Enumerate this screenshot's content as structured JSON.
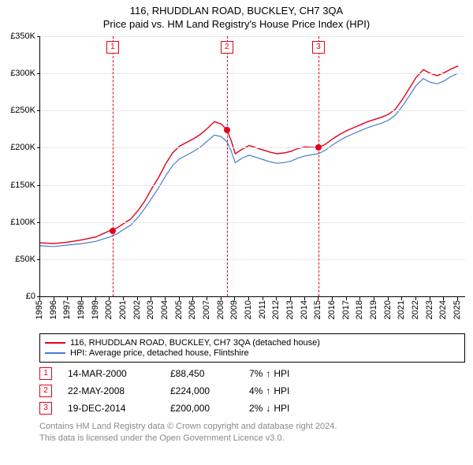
{
  "title": "116, RHUDDLAN ROAD, BUCKLEY, CH7 3QA",
  "subtitle": "Price paid vs. HM Land Registry's House Price Index (HPI)",
  "chart": {
    "type": "line",
    "background_color": "#ffffff",
    "grid_color": "#e8e8e8",
    "axis_color": "#000000",
    "x": {
      "min": 1995,
      "max": 2025.5,
      "ticks": [
        1995,
        1996,
        1997,
        1998,
        1999,
        2000,
        2001,
        2002,
        2003,
        2004,
        2005,
        2006,
        2007,
        2008,
        2009,
        2010,
        2011,
        2012,
        2013,
        2014,
        2015,
        2016,
        2017,
        2018,
        2019,
        2020,
        2021,
        2022,
        2023,
        2024,
        2025
      ]
    },
    "y": {
      "min": 0,
      "max": 350000,
      "ticks": [
        0,
        50000,
        100000,
        150000,
        200000,
        250000,
        300000,
        350000
      ],
      "tick_labels": [
        "£0",
        "£50K",
        "£100K",
        "£150K",
        "£200K",
        "£250K",
        "£300K",
        "£350K"
      ]
    },
    "series": [
      {
        "name": "116, RHUDDLAN ROAD, BUCKLEY, CH7 3QA (detached house)",
        "color": "#e2001a",
        "width": 1.4,
        "data": [
          [
            1995,
            72000
          ],
          [
            1996,
            71000
          ],
          [
            1997,
            73000
          ],
          [
            1998,
            76000
          ],
          [
            1999,
            80000
          ],
          [
            2000,
            88450
          ],
          [
            2000.5,
            92000
          ],
          [
            2001,
            98000
          ],
          [
            2001.5,
            104000
          ],
          [
            2002,
            115000
          ],
          [
            2002.5,
            128000
          ],
          [
            2003,
            145000
          ],
          [
            2003.5,
            160000
          ],
          [
            2004,
            178000
          ],
          [
            2004.5,
            193000
          ],
          [
            2005,
            202000
          ],
          [
            2005.5,
            207000
          ],
          [
            2006,
            212000
          ],
          [
            2006.5,
            218000
          ],
          [
            2007,
            226000
          ],
          [
            2007.5,
            235000
          ],
          [
            2008,
            232000
          ],
          [
            2008.4,
            224000
          ],
          [
            2008.7,
            210000
          ],
          [
            2009,
            192000
          ],
          [
            2009.5,
            198000
          ],
          [
            2010,
            203000
          ],
          [
            2010.5,
            200000
          ],
          [
            2011,
            197000
          ],
          [
            2011.5,
            194000
          ],
          [
            2012,
            192000
          ],
          [
            2012.5,
            193000
          ],
          [
            2013,
            195000
          ],
          [
            2013.5,
            199000
          ],
          [
            2014,
            201000
          ],
          [
            2014.97,
            200000
          ],
          [
            2015.5,
            205000
          ],
          [
            2016,
            212000
          ],
          [
            2016.5,
            218000
          ],
          [
            2017,
            223000
          ],
          [
            2017.5,
            227000
          ],
          [
            2018,
            231000
          ],
          [
            2018.5,
            235000
          ],
          [
            2019,
            238000
          ],
          [
            2019.5,
            241000
          ],
          [
            2020,
            245000
          ],
          [
            2020.5,
            252000
          ],
          [
            2021,
            265000
          ],
          [
            2021.5,
            280000
          ],
          [
            2022,
            295000
          ],
          [
            2022.5,
            305000
          ],
          [
            2023,
            300000
          ],
          [
            2023.5,
            297000
          ],
          [
            2024,
            301000
          ],
          [
            2024.5,
            306000
          ],
          [
            2025,
            310000
          ]
        ]
      },
      {
        "name": "HPI: Average price, detached house, Flintshire",
        "color": "#4a7bd0",
        "width": 1.2,
        "data": [
          [
            1995,
            68000
          ],
          [
            1996,
            67000
          ],
          [
            1997,
            69000
          ],
          [
            1998,
            71000
          ],
          [
            1999,
            74000
          ],
          [
            2000,
            80000
          ],
          [
            2000.5,
            84000
          ],
          [
            2001,
            90000
          ],
          [
            2001.5,
            96000
          ],
          [
            2002,
            106000
          ],
          [
            2002.5,
            118000
          ],
          [
            2003,
            132000
          ],
          [
            2003.5,
            146000
          ],
          [
            2004,
            162000
          ],
          [
            2004.5,
            176000
          ],
          [
            2005,
            185000
          ],
          [
            2005.5,
            190000
          ],
          [
            2006,
            195000
          ],
          [
            2006.5,
            201000
          ],
          [
            2007,
            209000
          ],
          [
            2007.5,
            217000
          ],
          [
            2008,
            215000
          ],
          [
            2008.4,
            208000
          ],
          [
            2008.7,
            196000
          ],
          [
            2009,
            180000
          ],
          [
            2009.5,
            186000
          ],
          [
            2010,
            190000
          ],
          [
            2010.5,
            187000
          ],
          [
            2011,
            184000
          ],
          [
            2011.5,
            181000
          ],
          [
            2012,
            179000
          ],
          [
            2012.5,
            180000
          ],
          [
            2013,
            182000
          ],
          [
            2013.5,
            186000
          ],
          [
            2014,
            189000
          ],
          [
            2014.97,
            192000
          ],
          [
            2015.5,
            197000
          ],
          [
            2016,
            204000
          ],
          [
            2016.5,
            210000
          ],
          [
            2017,
            215000
          ],
          [
            2017.5,
            219000
          ],
          [
            2018,
            223000
          ],
          [
            2018.5,
            227000
          ],
          [
            2019,
            230000
          ],
          [
            2019.5,
            233000
          ],
          [
            2020,
            237000
          ],
          [
            2020.5,
            244000
          ],
          [
            2021,
            256000
          ],
          [
            2021.5,
            270000
          ],
          [
            2022,
            284000
          ],
          [
            2022.5,
            293000
          ],
          [
            2023,
            288000
          ],
          [
            2023.5,
            286000
          ],
          [
            2024,
            290000
          ],
          [
            2024.5,
            296000
          ],
          [
            2025,
            300000
          ]
        ]
      }
    ],
    "sale_markers": [
      {
        "n": "1",
        "x": 2000.2,
        "y": 88450,
        "color": "#e2001a"
      },
      {
        "n": "2",
        "x": 2008.39,
        "y": 224000,
        "color": "#e2001a"
      },
      {
        "n": "3",
        "x": 2014.97,
        "y": 200000,
        "color": "#e2001a"
      }
    ]
  },
  "legend": {
    "items": [
      {
        "color": "#e2001a",
        "label": "116, RHUDDLAN ROAD, BUCKLEY, CH7 3QA (detached house)"
      },
      {
        "color": "#4a7bd0",
        "label": "HPI: Average price, detached house, Flintshire"
      }
    ]
  },
  "sales": [
    {
      "n": "1",
      "color": "#e2001a",
      "date": "14-MAR-2000",
      "price": "£88,450",
      "pct": "7%",
      "dir": "up",
      "suffix": "HPI"
    },
    {
      "n": "2",
      "color": "#e2001a",
      "date": "22-MAY-2008",
      "price": "£224,000",
      "pct": "4%",
      "dir": "up",
      "suffix": "HPI"
    },
    {
      "n": "3",
      "color": "#e2001a",
      "date": "19-DEC-2014",
      "price": "£200,000",
      "pct": "2%",
      "dir": "down",
      "suffix": "HPI"
    }
  ],
  "footer_line1": "Contains HM Land Registry data © Crown copyright and database right 2024.",
  "footer_line2": "This data is licensed under the Open Government Licence v3.0."
}
